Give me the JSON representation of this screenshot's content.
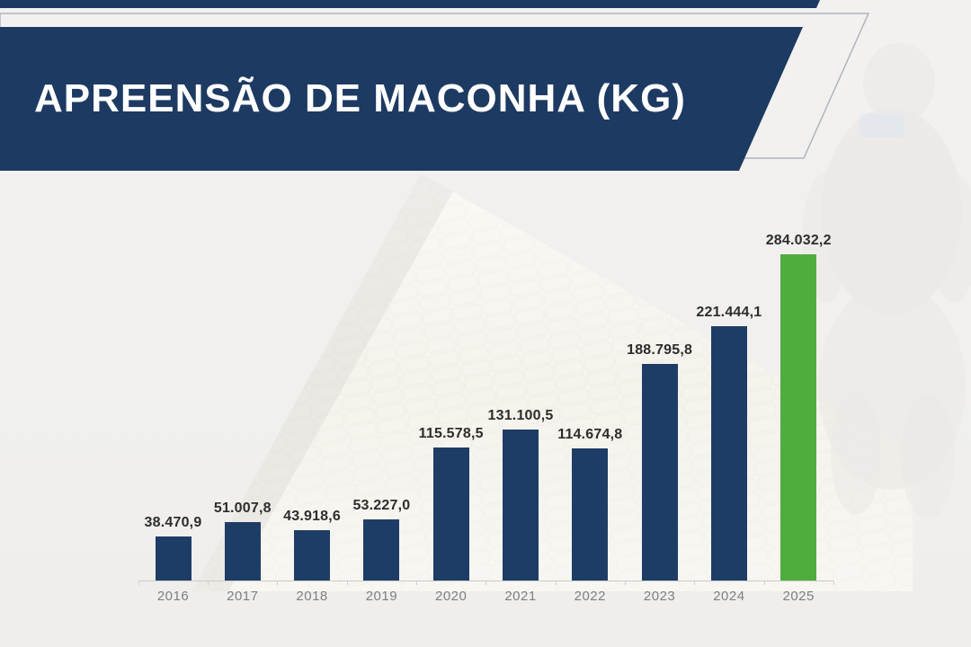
{
  "slide": {
    "title": "APREENSÃO DE MACONHA (KG)"
  },
  "chart_data": {
    "type": "bar",
    "title": "APREENSÃO DE MACONHA (KG)",
    "unit": "kg",
    "categories": [
      "2016",
      "2017",
      "2018",
      "2019",
      "2020",
      "2021",
      "2022",
      "2023",
      "2024",
      "2025"
    ],
    "values": [
      38470.9,
      51007.8,
      43918.6,
      53227.0,
      115578.5,
      131100.5,
      114674.8,
      188795.8,
      221444.1,
      284032.2
    ],
    "value_labels": [
      "38.470,9",
      "51.007,8",
      "43.918,6",
      "53.227,0",
      "115.578,5",
      "131.100,5",
      "114.674,8",
      "188.795,8",
      "221.444,1",
      "284.032,2"
    ],
    "highlight_index": 9,
    "xlabel": "",
    "ylabel": "",
    "ylim": [
      0,
      300000
    ],
    "grid": false,
    "legend": false,
    "data_labels": true,
    "colors": {
      "bar": "#1e3d66",
      "highlight": "#4fad3e",
      "banner": "#1d3a62",
      "value_label": "#2d2d2d",
      "axis_label": "#7d7f82",
      "axis_line": "#c9cac9"
    }
  },
  "background": {
    "photo_left": "pile-of-seized-drug-bricks",
    "photo_right": "officer-in-white-protective-suit"
  }
}
